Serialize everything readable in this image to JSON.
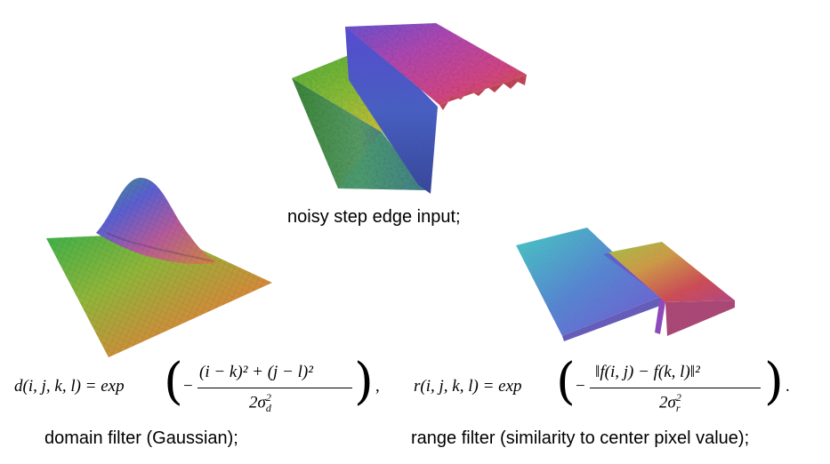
{
  "captions": {
    "input": "noisy step edge input;",
    "domain": "domain filter (Gaussian);",
    "range": "range filter (similarity to center pixel value);"
  },
  "formulas": {
    "domain_lhs": "d(i, j, k, l) = exp",
    "domain_num": "(i − k)² + (j − l)²",
    "domain_den": "2σ",
    "domain_sub": "d",
    "domain_tail": ",",
    "range_lhs": "r(i, j, k, l) = exp",
    "range_num": "‖f(i, j) − f(k, l)‖²",
    "range_den": "2σ",
    "range_sub": "r",
    "range_tail": "."
  },
  "colors": {
    "green": "#3fa82e",
    "yellow": "#d9c51f",
    "red": "#d94a3a",
    "magenta": "#b64ab8",
    "blue": "#4a55d0",
    "cyan": "#3ec3d9"
  }
}
